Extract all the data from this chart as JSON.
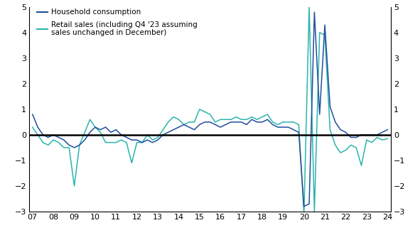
{
  "household_consumption": {
    "label": "Household consumption",
    "color": "#1f4e9c",
    "x": [
      2007.0,
      2007.25,
      2007.5,
      2007.75,
      2008.0,
      2008.25,
      2008.5,
      2008.75,
      2009.0,
      2009.25,
      2009.5,
      2009.75,
      2010.0,
      2010.25,
      2010.5,
      2010.75,
      2011.0,
      2011.25,
      2011.5,
      2011.75,
      2012.0,
      2012.25,
      2012.5,
      2012.75,
      2013.0,
      2013.25,
      2013.5,
      2013.75,
      2014.0,
      2014.25,
      2014.5,
      2014.75,
      2015.0,
      2015.25,
      2015.5,
      2015.75,
      2016.0,
      2016.25,
      2016.5,
      2016.75,
      2017.0,
      2017.25,
      2017.5,
      2017.75,
      2018.0,
      2018.25,
      2018.5,
      2018.75,
      2019.0,
      2019.25,
      2019.5,
      2019.75,
      2020.0,
      2020.25,
      2020.5,
      2020.75,
      2021.0,
      2021.25,
      2021.5,
      2021.75,
      2022.0,
      2022.25,
      2022.5,
      2022.75,
      2023.0,
      2023.25,
      2023.5,
      2023.75,
      2024.0
    ],
    "y": [
      0.8,
      0.3,
      0.0,
      -0.1,
      0.0,
      -0.1,
      -0.2,
      -0.4,
      -0.5,
      -0.4,
      -0.2,
      0.1,
      0.3,
      0.2,
      0.3,
      0.1,
      0.2,
      0.0,
      -0.1,
      -0.2,
      -0.2,
      -0.3,
      -0.2,
      -0.3,
      -0.2,
      0.0,
      0.1,
      0.2,
      0.3,
      0.4,
      0.3,
      0.2,
      0.4,
      0.5,
      0.5,
      0.4,
      0.3,
      0.4,
      0.5,
      0.5,
      0.5,
      0.4,
      0.6,
      0.5,
      0.5,
      0.6,
      0.4,
      0.3,
      0.3,
      0.3,
      0.2,
      0.1,
      -2.8,
      -2.7,
      4.8,
      0.8,
      4.3,
      1.1,
      0.5,
      0.2,
      0.1,
      -0.1,
      -0.1,
      0.0,
      0.0,
      0.0,
      0.0,
      0.1,
      0.2
    ]
  },
  "retail_sales": {
    "label": "Retail sales (including Q4 '23 assuming\nsales unchanged in December)",
    "color": "#2ab5aa",
    "x": [
      2007.0,
      2007.25,
      2007.5,
      2007.75,
      2008.0,
      2008.25,
      2008.5,
      2008.75,
      2009.0,
      2009.25,
      2009.5,
      2009.75,
      2010.0,
      2010.25,
      2010.5,
      2010.75,
      2011.0,
      2011.25,
      2011.5,
      2011.75,
      2012.0,
      2012.25,
      2012.5,
      2012.75,
      2013.0,
      2013.25,
      2013.5,
      2013.75,
      2014.0,
      2014.25,
      2014.5,
      2014.75,
      2015.0,
      2015.25,
      2015.5,
      2015.75,
      2016.0,
      2016.25,
      2016.5,
      2016.75,
      2017.0,
      2017.25,
      2017.5,
      2017.75,
      2018.0,
      2018.25,
      2018.5,
      2018.75,
      2019.0,
      2019.25,
      2019.5,
      2019.75,
      2020.0,
      2020.25,
      2020.5,
      2020.75,
      2021.0,
      2021.25,
      2021.5,
      2021.75,
      2022.0,
      2022.25,
      2022.5,
      2022.75,
      2023.0,
      2023.25,
      2023.5,
      2023.75,
      2024.0
    ],
    "y": [
      0.3,
      0.0,
      -0.3,
      -0.4,
      -0.2,
      -0.3,
      -0.5,
      -0.5,
      -2.0,
      -0.4,
      0.1,
      0.6,
      0.3,
      0.1,
      -0.3,
      -0.3,
      -0.3,
      -0.2,
      -0.3,
      -1.1,
      -0.3,
      -0.3,
      0.0,
      -0.2,
      -0.1,
      0.2,
      0.5,
      0.7,
      0.6,
      0.4,
      0.5,
      0.5,
      1.0,
      0.9,
      0.8,
      0.5,
      0.6,
      0.6,
      0.6,
      0.7,
      0.6,
      0.6,
      0.7,
      0.6,
      0.7,
      0.8,
      0.5,
      0.4,
      0.5,
      0.5,
      0.5,
      0.4,
      -3.1,
      5.0,
      -3.0,
      4.0,
      3.9,
      0.2,
      -0.4,
      -0.7,
      -0.6,
      -0.4,
      -0.5,
      -1.2,
      -0.2,
      -0.3,
      -0.1,
      -0.2,
      -0.15
    ]
  },
  "ylim": [
    -3,
    5
  ],
  "yticks": [
    -3,
    -2,
    -1,
    0,
    1,
    2,
    3,
    4,
    5
  ],
  "xlim": [
    2006.85,
    2024.15
  ],
  "xtick_years": [
    7,
    8,
    9,
    10,
    11,
    12,
    13,
    14,
    15,
    16,
    17,
    18,
    19,
    20,
    21,
    22,
    23,
    24
  ],
  "background_color": "#ffffff",
  "zero_line_color": "#000000",
  "legend_label1": "Household consumption",
  "legend_label2": "Retail sales (including Q4 '23 assuming\nsales unchanged in December)"
}
